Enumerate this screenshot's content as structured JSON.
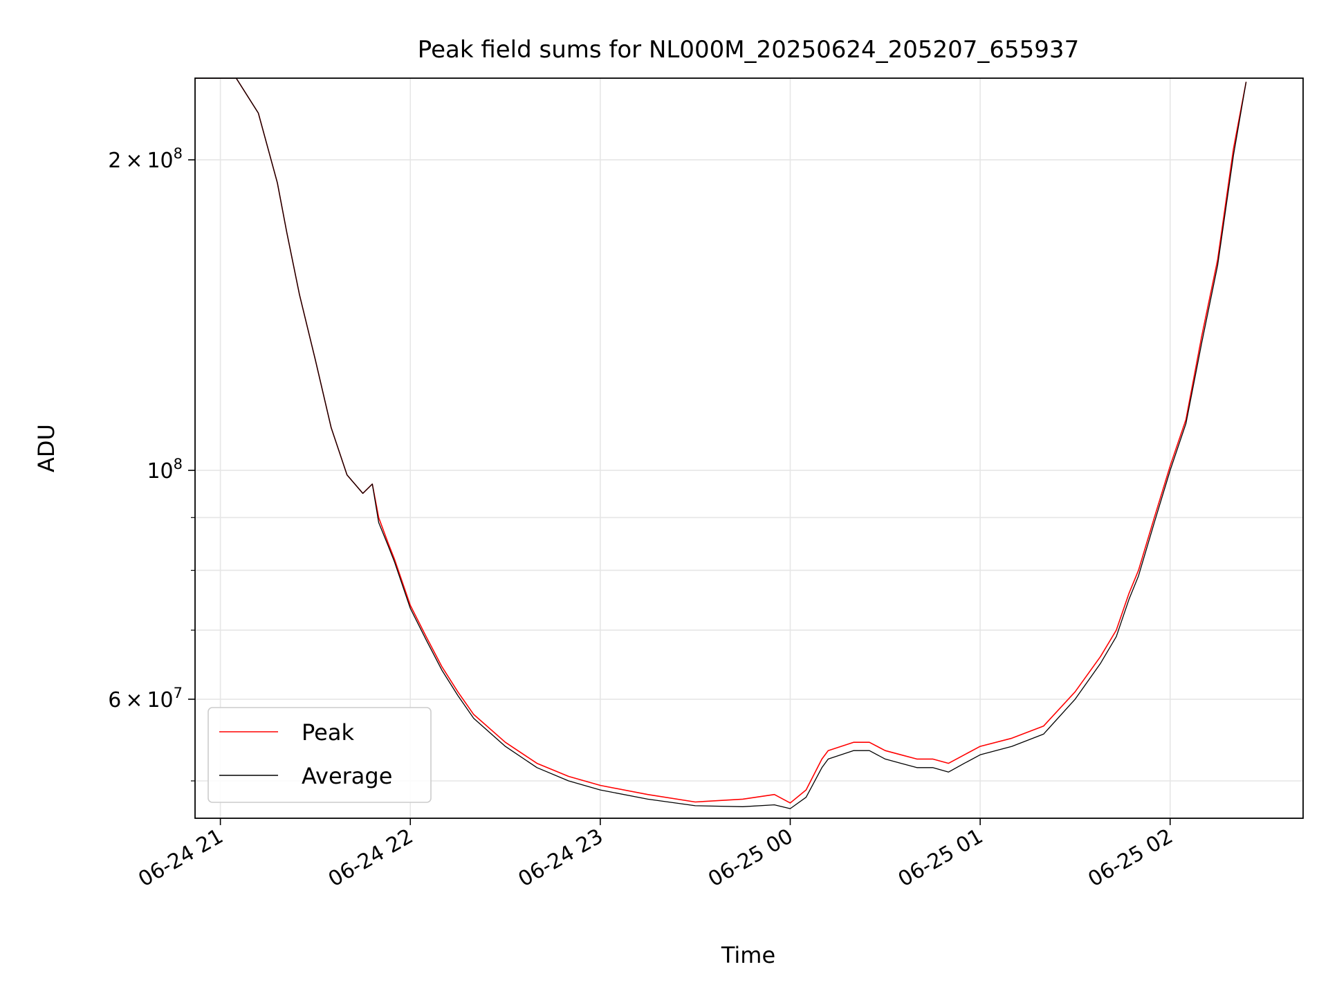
{
  "chart_data": {
    "type": "line",
    "title": "Peak field sums for NL000M_20250624_205207_655937",
    "xlabel": "Time",
    "ylabel": "ADU",
    "yscale": "log",
    "grid": true,
    "legend_placement": "lower-left",
    "xlim": [
      "2025-06-24 20:52",
      "2025-06-25 02:42"
    ],
    "ylim": [
      46000000,
      240000000
    ],
    "x_ticks": [
      {
        "label": "06-24 21",
        "value": "2025-06-24 21:00"
      },
      {
        "label": "06-24 22",
        "value": "2025-06-24 22:00"
      },
      {
        "label": "06-24 23",
        "value": "2025-06-24 23:00"
      },
      {
        "label": "06-25 00",
        "value": "2025-06-25 00:00"
      },
      {
        "label": "06-25 01",
        "value": "2025-06-25 01:00"
      },
      {
        "label": "06-25 02",
        "value": "2025-06-25 02:00"
      }
    ],
    "y_major_ticks": [
      {
        "label": "2×10^8",
        "mantissa": "2",
        "exp": "8",
        "value": 200000000
      },
      {
        "label": "10^8",
        "mantissa": "",
        "exp": "8",
        "value": 100000000
      },
      {
        "label": "6×10^7",
        "mantissa": "6",
        "exp": "7",
        "value": 60000000
      }
    ],
    "y_minor_ticks": [
      50000000,
      70000000,
      80000000,
      90000000
    ],
    "series": [
      {
        "name": "Peak",
        "color": "#ff0000",
        "x": [
          "2025-06-24 20:52",
          "2025-06-24 21:05",
          "2025-06-24 21:12",
          "2025-06-24 21:18",
          "2025-06-24 21:21",
          "2025-06-24 21:25",
          "2025-06-24 21:30",
          "2025-06-24 21:35",
          "2025-06-24 21:40",
          "2025-06-24 21:45",
          "2025-06-24 21:48",
          "2025-06-24 21:50",
          "2025-06-24 21:53",
          "2025-06-24 21:55",
          "2025-06-24 22:00",
          "2025-06-24 22:05",
          "2025-06-24 22:10",
          "2025-06-24 22:15",
          "2025-06-24 22:20",
          "2025-06-24 22:30",
          "2025-06-24 22:40",
          "2025-06-24 22:50",
          "2025-06-24 23:00",
          "2025-06-24 23:15",
          "2025-06-24 23:30",
          "2025-06-24 23:45",
          "2025-06-24 23:55",
          "2025-06-25 00:00",
          "2025-06-25 00:05",
          "2025-06-25 00:10",
          "2025-06-25 00:12",
          "2025-06-25 00:20",
          "2025-06-25 00:25",
          "2025-06-25 00:30",
          "2025-06-25 00:35",
          "2025-06-25 00:40",
          "2025-06-25 00:45",
          "2025-06-25 00:50",
          "2025-06-25 00:55",
          "2025-06-25 01:00",
          "2025-06-25 01:10",
          "2025-06-25 01:20",
          "2025-06-25 01:30",
          "2025-06-25 01:38",
          "2025-06-25 01:43",
          "2025-06-25 01:47",
          "2025-06-25 01:50",
          "2025-06-25 01:55",
          "2025-06-25 02:00",
          "2025-06-25 02:05",
          "2025-06-25 02:10",
          "2025-06-25 02:15",
          "2025-06-25 02:20",
          "2025-06-25 02:24"
        ],
        "y": [
          240000000,
          240000000,
          222000000,
          190000000,
          170000000,
          148000000,
          128000000,
          110000000,
          99000000,
          95000000,
          97000000,
          90000000,
          85000000,
          82000000,
          74000000,
          69000000,
          64500000,
          61000000,
          58000000,
          54500000,
          52000000,
          50500000,
          49500000,
          48500000,
          47700000,
          48000000,
          48500000,
          47600000,
          49000000,
          52500000,
          53500000,
          54500000,
          54500000,
          53500000,
          53000000,
          52500000,
          52500000,
          52000000,
          53000000,
          54000000,
          55000000,
          56500000,
          61000000,
          66000000,
          70000000,
          76000000,
          80000000,
          90000000,
          101000000,
          112000000,
          135000000,
          160000000,
          205000000,
          238000000
        ]
      },
      {
        "name": "Average",
        "color": "#000000",
        "x": [
          "2025-06-24 20:52",
          "2025-06-24 21:05",
          "2025-06-24 21:12",
          "2025-06-24 21:18",
          "2025-06-24 21:21",
          "2025-06-24 21:25",
          "2025-06-24 21:30",
          "2025-06-24 21:35",
          "2025-06-24 21:40",
          "2025-06-24 21:45",
          "2025-06-24 21:48",
          "2025-06-24 21:50",
          "2025-06-24 21:53",
          "2025-06-24 21:55",
          "2025-06-24 22:00",
          "2025-06-24 22:05",
          "2025-06-24 22:10",
          "2025-06-24 22:15",
          "2025-06-24 22:20",
          "2025-06-24 22:30",
          "2025-06-24 22:40",
          "2025-06-24 22:50",
          "2025-06-24 23:00",
          "2025-06-24 23:15",
          "2025-06-24 23:30",
          "2025-06-24 23:45",
          "2025-06-24 23:55",
          "2025-06-25 00:00",
          "2025-06-25 00:05",
          "2025-06-25 00:10",
          "2025-06-25 00:12",
          "2025-06-25 00:20",
          "2025-06-25 00:25",
          "2025-06-25 00:30",
          "2025-06-25 00:35",
          "2025-06-25 00:40",
          "2025-06-25 00:45",
          "2025-06-25 00:50",
          "2025-06-25 00:55",
          "2025-06-25 01:00",
          "2025-06-25 01:10",
          "2025-06-25 01:20",
          "2025-06-25 01:30",
          "2025-06-25 01:38",
          "2025-06-25 01:43",
          "2025-06-25 01:47",
          "2025-06-25 01:50",
          "2025-06-25 01:55",
          "2025-06-25 02:00",
          "2025-06-25 02:05",
          "2025-06-25 02:10",
          "2025-06-25 02:15",
          "2025-06-25 02:20",
          "2025-06-25 02:24"
        ],
        "y": [
          240000000,
          240000000,
          222000000,
          190000000,
          170000000,
          148000000,
          128000000,
          110000000,
          99000000,
          95000000,
          97000000,
          89000000,
          84500000,
          81500000,
          73500000,
          68500000,
          64000000,
          60500000,
          57500000,
          54000000,
          51500000,
          50000000,
          49000000,
          48000000,
          47300000,
          47200000,
          47400000,
          47000000,
          48200000,
          51500000,
          52500000,
          53500000,
          53500000,
          52500000,
          52000000,
          51500000,
          51500000,
          51000000,
          52000000,
          53000000,
          54000000,
          55500000,
          60000000,
          65000000,
          69000000,
          75000000,
          79000000,
          89000000,
          100000000,
          111000000,
          133000000,
          158000000,
          202000000,
          238000000
        ]
      }
    ]
  }
}
